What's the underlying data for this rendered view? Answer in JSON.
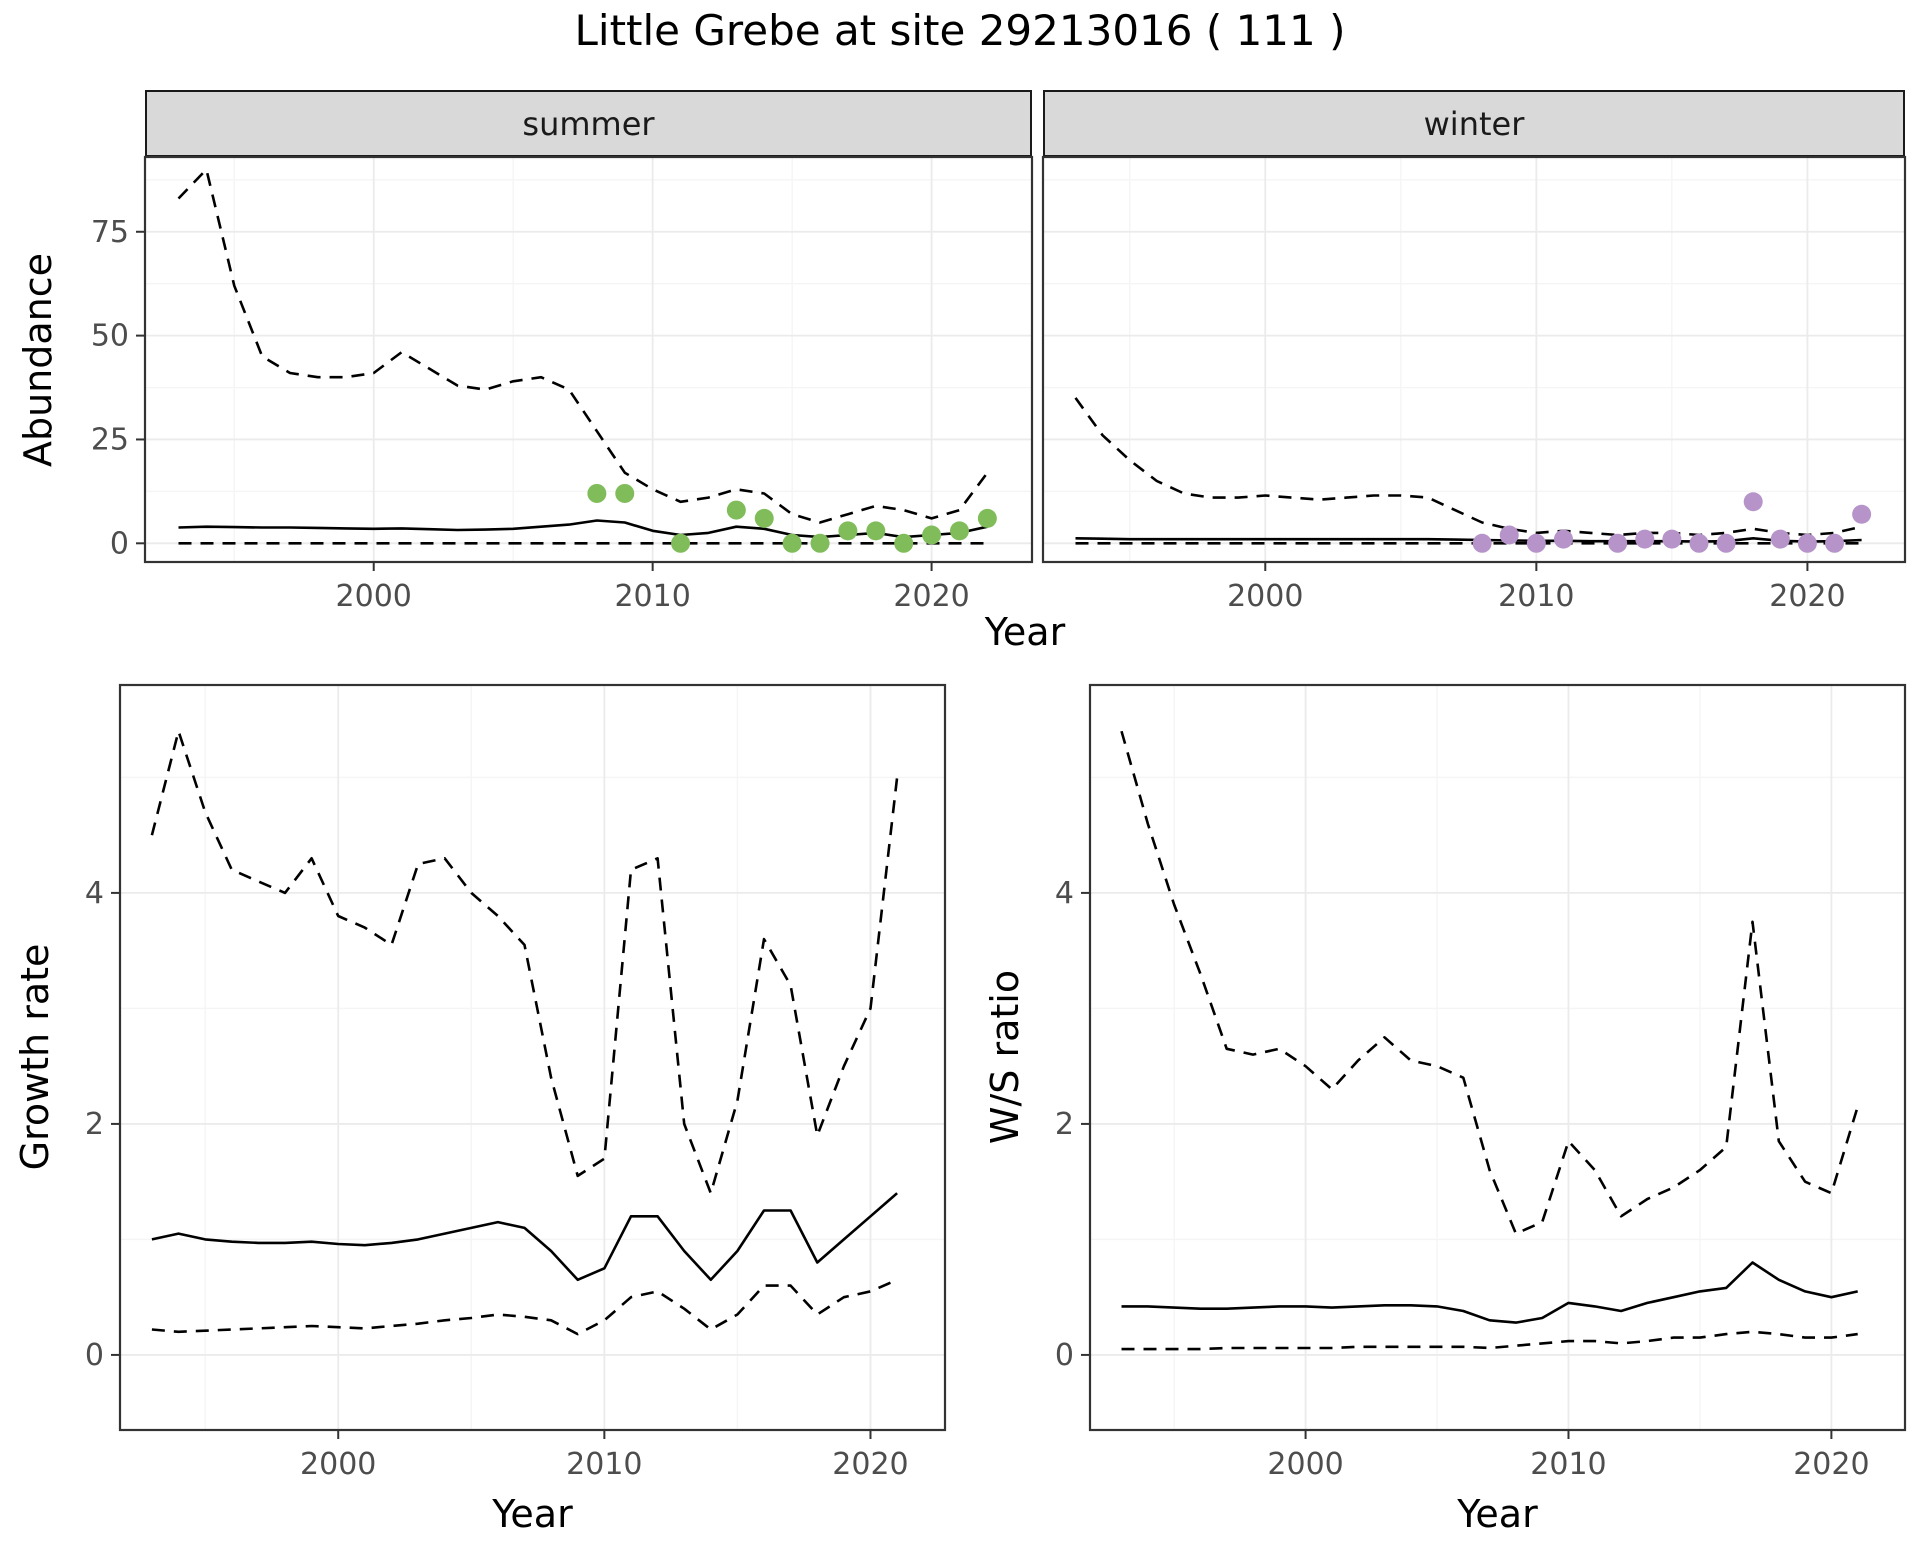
{
  "title": "Little Grebe at site 29213016 ( 111 )",
  "facets": {
    "summer": "summer",
    "winter": "winter"
  },
  "axis_labels": {
    "abundance": "Abundance",
    "year": "Year",
    "growth_rate": "Growth rate",
    "ws_ratio": "W/S ratio"
  },
  "colors": {
    "background": "#ffffff",
    "strip_bg": "#d9d9d9",
    "panel_border": "#333333",
    "grid_major": "#ebebeb",
    "grid_minor": "#f5f5f5",
    "line": "#000000",
    "axis_text": "#4d4d4d",
    "summer_point": "#80bd5a",
    "winter_point": "#b694c9"
  },
  "chart_data": [
    {
      "id": "abundance_summer",
      "type": "line",
      "title": "summer",
      "xlabel": "Year",
      "ylabel": "Abundance",
      "xlim": [
        1991.8,
        2023.6
      ],
      "ylim": [
        -4.5,
        93
      ],
      "xticks": [
        2000,
        2010,
        2020
      ],
      "yticks": [
        0,
        25,
        50,
        75
      ],
      "grid": true,
      "legend": "none",
      "x": [
        1993,
        1994,
        1995,
        1996,
        1997,
        1998,
        1999,
        2000,
        2001,
        2002,
        2003,
        2004,
        2005,
        2006,
        2007,
        2008,
        2009,
        2010,
        2011,
        2012,
        2013,
        2014,
        2015,
        2016,
        2017,
        2018,
        2019,
        2020,
        2021,
        2022
      ],
      "series": [
        {
          "name": "upper_ci",
          "style": "dashed",
          "values": [
            83,
            90,
            62,
            45,
            41,
            40,
            40,
            41,
            46,
            42,
            38,
            37,
            39,
            40,
            37,
            27,
            17,
            13,
            10,
            11,
            13,
            12,
            7,
            5,
            7,
            9,
            8,
            6,
            8,
            17
          ]
        },
        {
          "name": "mean",
          "style": "solid",
          "values": [
            3.8,
            4.0,
            3.9,
            3.8,
            3.8,
            3.7,
            3.6,
            3.5,
            3.6,
            3.4,
            3.2,
            3.3,
            3.5,
            4.0,
            4.5,
            5.5,
            5.0,
            3.0,
            2.0,
            2.5,
            4.0,
            3.5,
            2.0,
            1.5,
            2.0,
            2.5,
            1.5,
            2.0,
            2.5,
            4.0
          ]
        },
        {
          "name": "lower_ci",
          "style": "dashed",
          "values": [
            0,
            0,
            0,
            0,
            0,
            0,
            0,
            0,
            0,
            0,
            0,
            0,
            0,
            0,
            0,
            0,
            0,
            0,
            0,
            0,
            0,
            0,
            0,
            0,
            0,
            0,
            0,
            0,
            0,
            0
          ]
        }
      ],
      "points": {
        "name": "observed_counts",
        "color": "#80bd5a",
        "x": [
          2008,
          2009,
          2011,
          2013,
          2014,
          2015,
          2016,
          2017,
          2018,
          2019,
          2020,
          2021,
          2022
        ],
        "y": [
          12,
          12,
          0,
          8,
          6,
          0,
          0,
          3,
          3,
          0,
          2,
          3,
          6
        ]
      }
    },
    {
      "id": "abundance_winter",
      "type": "line",
      "title": "winter",
      "xlabel": "Year",
      "ylabel": "Abundance",
      "xlim": [
        1991.8,
        2023.6
      ],
      "ylim": [
        -4.5,
        93
      ],
      "xticks": [
        2000,
        2010,
        2020
      ],
      "yticks": [
        0,
        25,
        50,
        75
      ],
      "grid": true,
      "legend": "none",
      "x": [
        1993,
        1994,
        1995,
        1996,
        1997,
        1998,
        1999,
        2000,
        2001,
        2002,
        2003,
        2004,
        2005,
        2006,
        2007,
        2008,
        2009,
        2010,
        2011,
        2012,
        2013,
        2014,
        2015,
        2016,
        2017,
        2018,
        2019,
        2020,
        2021,
        2022
      ],
      "series": [
        {
          "name": "upper_ci",
          "style": "dashed",
          "values": [
            35,
            26,
            20,
            15,
            12,
            11,
            11,
            11.5,
            11,
            10.5,
            11,
            11.5,
            11.5,
            11,
            8,
            5,
            3.5,
            2.5,
            3,
            2.5,
            2,
            2.5,
            2.5,
            2,
            2.5,
            3.5,
            2.5,
            2,
            2.5,
            4
          ]
        },
        {
          "name": "mean",
          "style": "solid",
          "values": [
            1.2,
            1.1,
            1.0,
            1.0,
            1.0,
            1.0,
            1.0,
            1.0,
            1.0,
            1.0,
            1.0,
            1.0,
            1.0,
            1.0,
            0.9,
            0.8,
            0.7,
            0.6,
            0.6,
            0.5,
            0.5,
            0.5,
            0.5,
            0.4,
            0.5,
            1.2,
            0.6,
            0.4,
            0.5,
            0.8
          ]
        },
        {
          "name": "lower_ci",
          "style": "dashed",
          "values": [
            0,
            0,
            0,
            0,
            0,
            0,
            0,
            0,
            0,
            0,
            0,
            0,
            0,
            0,
            0,
            0,
            0,
            0,
            0,
            0,
            0,
            0,
            0,
            0,
            0,
            0,
            0,
            0,
            0,
            0
          ]
        }
      ],
      "points": {
        "name": "observed_counts",
        "color": "#b694c9",
        "x": [
          2008,
          2009,
          2010,
          2011,
          2013,
          2014,
          2015,
          2016,
          2017,
          2018,
          2019,
          2020,
          2021,
          2022
        ],
        "y": [
          0,
          2,
          0,
          1,
          0,
          1,
          1,
          0,
          0,
          10,
          1,
          0,
          0,
          7
        ]
      }
    },
    {
      "id": "growth_rate",
      "type": "line",
      "title": "",
      "xlabel": "Year",
      "ylabel": "Growth rate",
      "xlim": [
        1991.8,
        2022.8
      ],
      "ylim": [
        -0.65,
        5.8
      ],
      "xticks": [
        2000,
        2010,
        2020
      ],
      "yticks": [
        0,
        2,
        4
      ],
      "grid": true,
      "legend": "none",
      "x": [
        1993,
        1994,
        1995,
        1996,
        1997,
        1998,
        1999,
        2000,
        2001,
        2002,
        2003,
        2004,
        2005,
        2006,
        2007,
        2008,
        2009,
        2010,
        2011,
        2012,
        2013,
        2014,
        2015,
        2016,
        2017,
        2018,
        2019,
        2020,
        2021
      ],
      "series": [
        {
          "name": "upper_ci",
          "style": "dashed",
          "values": [
            4.5,
            5.4,
            4.7,
            4.2,
            4.1,
            4.0,
            4.3,
            3.8,
            3.7,
            3.55,
            4.25,
            4.3,
            4.0,
            3.8,
            3.55,
            2.4,
            1.55,
            1.7,
            4.2,
            4.3,
            2.0,
            1.4,
            2.2,
            3.6,
            3.2,
            1.9,
            2.5,
            3.0,
            5.0
          ]
        },
        {
          "name": "mean",
          "style": "solid",
          "values": [
            1.0,
            1.05,
            1.0,
            0.98,
            0.97,
            0.97,
            0.98,
            0.96,
            0.95,
            0.97,
            1.0,
            1.05,
            1.1,
            1.15,
            1.1,
            0.9,
            0.65,
            0.75,
            1.2,
            1.2,
            0.9,
            0.65,
            0.9,
            1.25,
            1.25,
            0.8,
            1.0,
            1.2,
            1.4
          ]
        },
        {
          "name": "lower_ci",
          "style": "dashed",
          "values": [
            0.22,
            0.2,
            0.21,
            0.22,
            0.23,
            0.24,
            0.25,
            0.24,
            0.23,
            0.25,
            0.27,
            0.3,
            0.32,
            0.35,
            0.33,
            0.3,
            0.18,
            0.3,
            0.5,
            0.55,
            0.4,
            0.22,
            0.35,
            0.6,
            0.6,
            0.35,
            0.5,
            0.55,
            0.65
          ]
        }
      ]
    },
    {
      "id": "ws_ratio",
      "type": "line",
      "title": "",
      "xlabel": "Year",
      "ylabel": "W/S ratio",
      "xlim": [
        1991.8,
        2022.8
      ],
      "ylim": [
        -0.65,
        5.8
      ],
      "xticks": [
        2000,
        2010,
        2020
      ],
      "yticks": [
        0,
        2,
        4
      ],
      "grid": true,
      "legend": "none",
      "x": [
        1993,
        1994,
        1995,
        1996,
        1997,
        1998,
        1999,
        2000,
        2001,
        2002,
        2003,
        2004,
        2005,
        2006,
        2007,
        2008,
        2009,
        2010,
        2011,
        2012,
        2013,
        2014,
        2015,
        2016,
        2017,
        2018,
        2019,
        2020,
        2021
      ],
      "series": [
        {
          "name": "upper_ci",
          "style": "dashed",
          "values": [
            5.4,
            4.6,
            3.9,
            3.3,
            2.65,
            2.6,
            2.65,
            2.5,
            2.3,
            2.55,
            2.75,
            2.55,
            2.5,
            2.4,
            1.6,
            1.05,
            1.15,
            1.85,
            1.6,
            1.2,
            1.35,
            1.45,
            1.6,
            1.8,
            3.75,
            1.85,
            1.5,
            1.4,
            2.15
          ]
        },
        {
          "name": "mean",
          "style": "solid",
          "values": [
            0.42,
            0.42,
            0.41,
            0.4,
            0.4,
            0.41,
            0.42,
            0.42,
            0.41,
            0.42,
            0.43,
            0.43,
            0.42,
            0.38,
            0.3,
            0.28,
            0.32,
            0.45,
            0.42,
            0.38,
            0.45,
            0.5,
            0.55,
            0.58,
            0.8,
            0.65,
            0.55,
            0.5,
            0.55
          ]
        },
        {
          "name": "lower_ci",
          "style": "dashed",
          "values": [
            0.05,
            0.05,
            0.05,
            0.05,
            0.06,
            0.06,
            0.06,
            0.06,
            0.06,
            0.07,
            0.07,
            0.07,
            0.07,
            0.07,
            0.06,
            0.08,
            0.1,
            0.12,
            0.12,
            0.1,
            0.12,
            0.15,
            0.15,
            0.18,
            0.2,
            0.18,
            0.15,
            0.15,
            0.18
          ]
        }
      ]
    }
  ]
}
